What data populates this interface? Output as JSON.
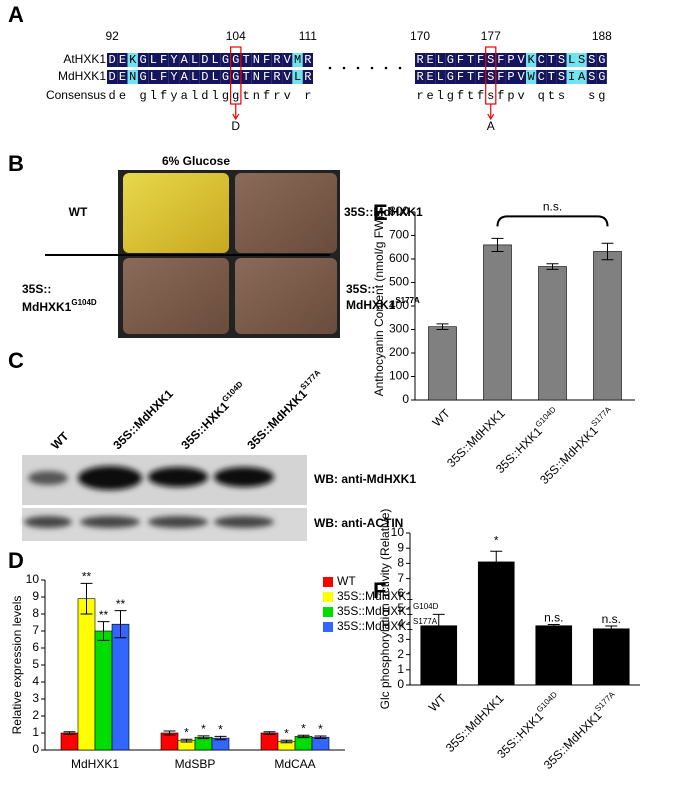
{
  "panels": {
    "A": {
      "label": "A",
      "row_names": [
        "AtHXK1",
        "MdHXK1",
        "Consensus"
      ],
      "blocks": [
        {
          "ticks": [
            92,
            104,
            111
          ],
          "AtHXK1": "DEKGLFYALDLGGTNFRVMR",
          "MdHXK1": "DENGLFYALDLGGTNFRVLR",
          "Consensus": "de glfyaldlggtnfrv r",
          "mutation": {
            "site": 104,
            "label": "D"
          }
        },
        {
          "ticks": [
            170,
            177,
            188
          ],
          "AtHXK1": "RELGFTFSFPVKCTSLSSG",
          "MdHXK1": "RELGFTFSFPVWCTSIASG",
          "Consensus": "relgftfsfpv qts  sg",
          "mutation": {
            "site": 177,
            "label": "A"
          }
        }
      ]
    },
    "B": {
      "label": "B",
      "title": "6% Glucose",
      "top_left": "WT",
      "top_right": "35S::MdHXK1",
      "bottom_left": {
        "line1": "35S::",
        "line2": "MdHXK1",
        "sup": "G104D"
      },
      "bottom_right": {
        "line1": "35S::",
        "line2": "MdHXK1",
        "sup": "S177A"
      }
    },
    "C": {
      "label": "C",
      "lanes": [
        {
          "name": "WT"
        },
        {
          "name": "35S::MdHXK1"
        },
        {
          "name": "35S::HXK1",
          "sup": "G104D"
        },
        {
          "name": "35S::MdHXK1",
          "sup": "S177A"
        }
      ],
      "blots": [
        "WB: anti-MdHXK1",
        "WB: anti-ACTIN"
      ]
    }
  },
  "chart_data": [
    {
      "type": "bar",
      "panel_label": "D",
      "ylabel": "Relative expression levels",
      "categories": [
        "MdHXK1",
        "MdSBP",
        "MdCAA"
      ],
      "ylim": [
        0,
        10
      ],
      "yticks": [
        0,
        1,
        2,
        3,
        4,
        5,
        6,
        7,
        8,
        9,
        10
      ],
      "legend": "upper right",
      "series": [
        {
          "name": "WT",
          "color": "#ff0000",
          "values": [
            1,
            1,
            1
          ],
          "errors": [
            0.07,
            0.12,
            0.07
          ]
        },
        {
          "name": "35S::MdHXK1",
          "color": "#ffff00",
          "values": [
            8.9,
            0.55,
            0.5
          ],
          "errors": [
            0.9,
            0.08,
            0.07
          ],
          "sig": [
            "**",
            "*",
            "*"
          ]
        },
        {
          "name": "35S::MdHXK1",
          "name_sup": "G104D",
          "color": "#00dd00",
          "values": [
            7.0,
            0.75,
            0.8
          ],
          "errors": [
            0.55,
            0.08,
            0.07
          ],
          "sig": [
            "**",
            "*",
            "*"
          ]
        },
        {
          "name": "35S::MdHXK1",
          "name_sup": "S177A",
          "color": "#3366ff",
          "values": [
            7.4,
            0.7,
            0.75
          ],
          "errors": [
            0.8,
            0.1,
            0.07
          ],
          "sig": [
            "**",
            "*",
            "*"
          ]
        }
      ]
    },
    {
      "type": "bar",
      "panel_label": "E",
      "ylabel": "Anthocyanin Content (nmol/g FW)",
      "categories": [
        "WT",
        "35S::MdHXK1",
        "35S::HXK1",
        "35S::MdHXK1"
      ],
      "category_sups": [
        null,
        null,
        "G104D",
        "S177A"
      ],
      "values": [
        312,
        660,
        568,
        632
      ],
      "errors": [
        12,
        28,
        12,
        35
      ],
      "color": "#808080",
      "ylim": [
        0,
        800
      ],
      "yticks": [
        0,
        100,
        200,
        300,
        400,
        500,
        600,
        700,
        800
      ],
      "bracket_label": "n.s."
    },
    {
      "type": "bar",
      "panel_label": "F",
      "ylabel": "Glc phosphorylation activity (Relative)",
      "categories": [
        "WT",
        "35S::MdHXK1",
        "35S::HXK1",
        "35S::MdHXK1"
      ],
      "category_sups": [
        null,
        null,
        "G104D",
        "S177A"
      ],
      "values": [
        3.9,
        8.1,
        3.9,
        3.7
      ],
      "errors": [
        0.75,
        0.7,
        0.08,
        0.18
      ],
      "color": "#000000",
      "sig": [
        null,
        "*",
        "n.s.",
        "n.s."
      ],
      "ylim": [
        0,
        10
      ],
      "yticks": [
        0,
        1,
        2,
        3,
        4,
        5,
        6,
        7,
        8,
        9,
        10
      ]
    }
  ]
}
